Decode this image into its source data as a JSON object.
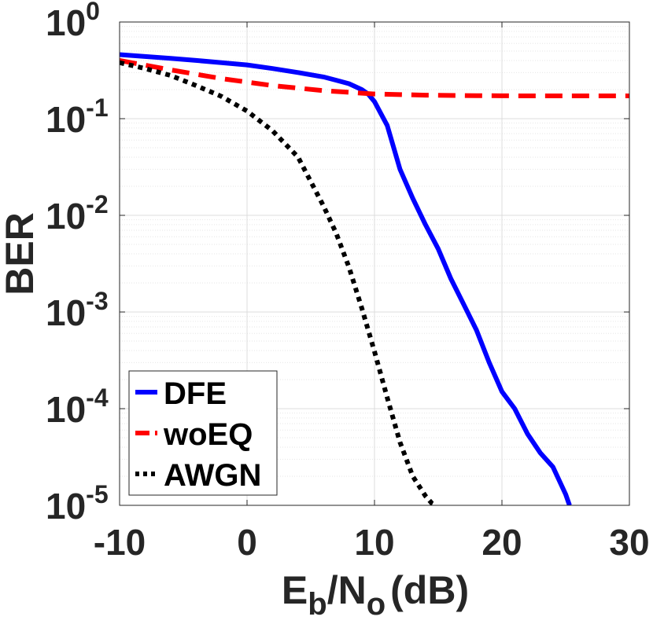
{
  "chart_data": {
    "type": "line",
    "title": "",
    "xlabel_main": "E",
    "xlabel_sub1": "b",
    "xlabel_slash": "/N",
    "xlabel_sub2": "o",
    "xlabel_unit": "(dB)",
    "ylabel": "BER",
    "x_scale": "linear",
    "y_scale": "log",
    "xlim": [
      -10,
      30
    ],
    "ylim": [
      1e-05,
      1
    ],
    "grid": true,
    "x_ticks": [
      -10,
      0,
      10,
      20,
      30
    ],
    "x_tick_labels": [
      "-10",
      "0",
      "10",
      "20",
      "30"
    ],
    "y_ticks": [
      1,
      0.1,
      0.01,
      0.001,
      0.0001,
      1e-05
    ],
    "y_tick_base": "10",
    "y_tick_exponents": [
      "0",
      "-1",
      "-2",
      "-3",
      "-4",
      "-5"
    ],
    "legend_position": "bottom-left",
    "series": [
      {
        "name": "DFE",
        "color": "#0000ff",
        "style": "solid",
        "x": [
          -10,
          -8,
          -6,
          -4,
          -2,
          0,
          2,
          4,
          6,
          7,
          8,
          9,
          9.5,
          10,
          11,
          12,
          13,
          14,
          15,
          16,
          17,
          18,
          19,
          20,
          21,
          22,
          23,
          24,
          25,
          25.3
        ],
        "y": [
          0.46,
          0.44,
          0.42,
          0.4,
          0.38,
          0.36,
          0.33,
          0.3,
          0.27,
          0.25,
          0.23,
          0.2,
          0.18,
          0.15,
          0.085,
          0.03,
          0.015,
          0.008,
          0.0045,
          0.0022,
          0.0012,
          0.00065,
          0.0003,
          0.00015,
          0.0001,
          5.5e-05,
          3.5e-05,
          2.5e-05,
          1.3e-05,
          1e-05
        ]
      },
      {
        "name": "woEQ",
        "color": "#ff0000",
        "style": "dashed",
        "x": [
          -10,
          -6,
          -2,
          2,
          6,
          10,
          14,
          18,
          22,
          26,
          30
        ],
        "y": [
          0.4,
          0.32,
          0.26,
          0.22,
          0.195,
          0.18,
          0.175,
          0.173,
          0.172,
          0.172,
          0.172
        ]
      },
      {
        "name": "AWGN",
        "color": "#000000",
        "style": "dotted",
        "x": [
          -10,
          -8,
          -6,
          -4,
          -2,
          0,
          2,
          4,
          6,
          7,
          8,
          9,
          10,
          11,
          12,
          13,
          14,
          14.5,
          14.8
        ],
        "y": [
          0.38,
          0.33,
          0.28,
          0.22,
          0.17,
          0.12,
          0.075,
          0.04,
          0.0125,
          0.0065,
          0.0029,
          0.0011,
          0.00039,
          0.00013,
          4.5e-05,
          2e-05,
          1.25e-05,
          1.05e-05,
          1e-05
        ]
      }
    ]
  }
}
